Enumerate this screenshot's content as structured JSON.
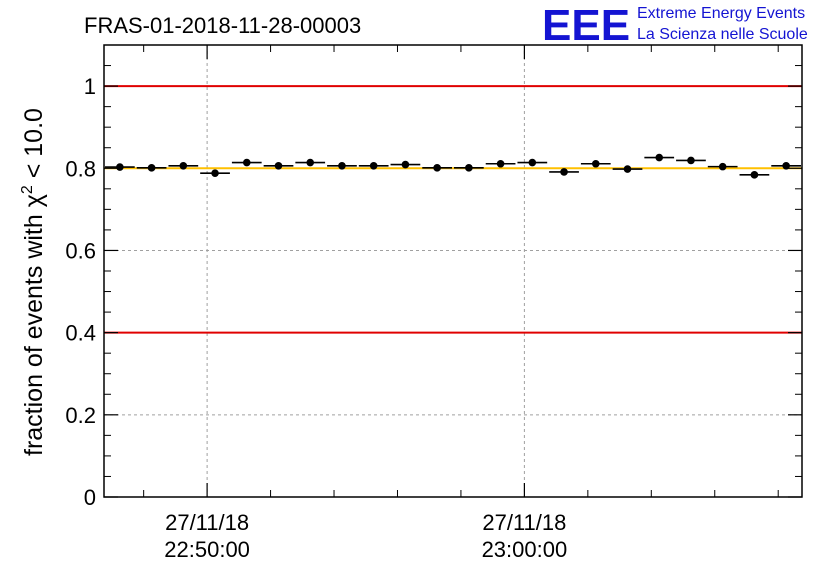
{
  "header": {
    "title": "FRAS-01-2018-11-28-00003",
    "logo": {
      "mark": "EEE",
      "line1": "Extreme Energy Events",
      "line2": "La Scienza nelle Scuole",
      "color": "#1414d2"
    }
  },
  "chart_data": {
    "type": "scatter",
    "title": "FRAS-01-2018-11-28-00003",
    "ylabel_main": "fraction of events with ",
    "ylabel_chi": "χ",
    "ylabel_sup": "2",
    "ylabel_tail": " < 10.0",
    "xlabel": "",
    "ylim": [
      0,
      1.1
    ],
    "yticks": [
      "0",
      "0.2",
      "0.4",
      "0.6",
      "0.8",
      "1"
    ],
    "x_start": "22:46:45",
    "bin_width_minutes": 1,
    "xticks": [
      {
        "label_date": "27/11/18",
        "label_time": "22:50:00",
        "minute": 3.25
      },
      {
        "label_date": "27/11/18",
        "label_time": "23:00:00",
        "minute": 13.25
      }
    ],
    "series": [
      {
        "values": [
          0.803,
          0.801,
          0.806,
          0.788,
          0.814,
          0.806,
          0.814,
          0.806,
          0.806,
          0.809,
          0.801,
          0.801,
          0.811,
          0.814,
          0.791,
          0.811,
          0.798,
          0.826,
          0.819,
          0.804,
          0.784,
          0.806
        ]
      }
    ],
    "reference_lines": [
      {
        "y": 1.0,
        "color": "#e00000"
      },
      {
        "y": 0.4,
        "color": "#e00000"
      },
      {
        "y": 0.8,
        "color": "#ffc000"
      }
    ],
    "grid": true
  }
}
